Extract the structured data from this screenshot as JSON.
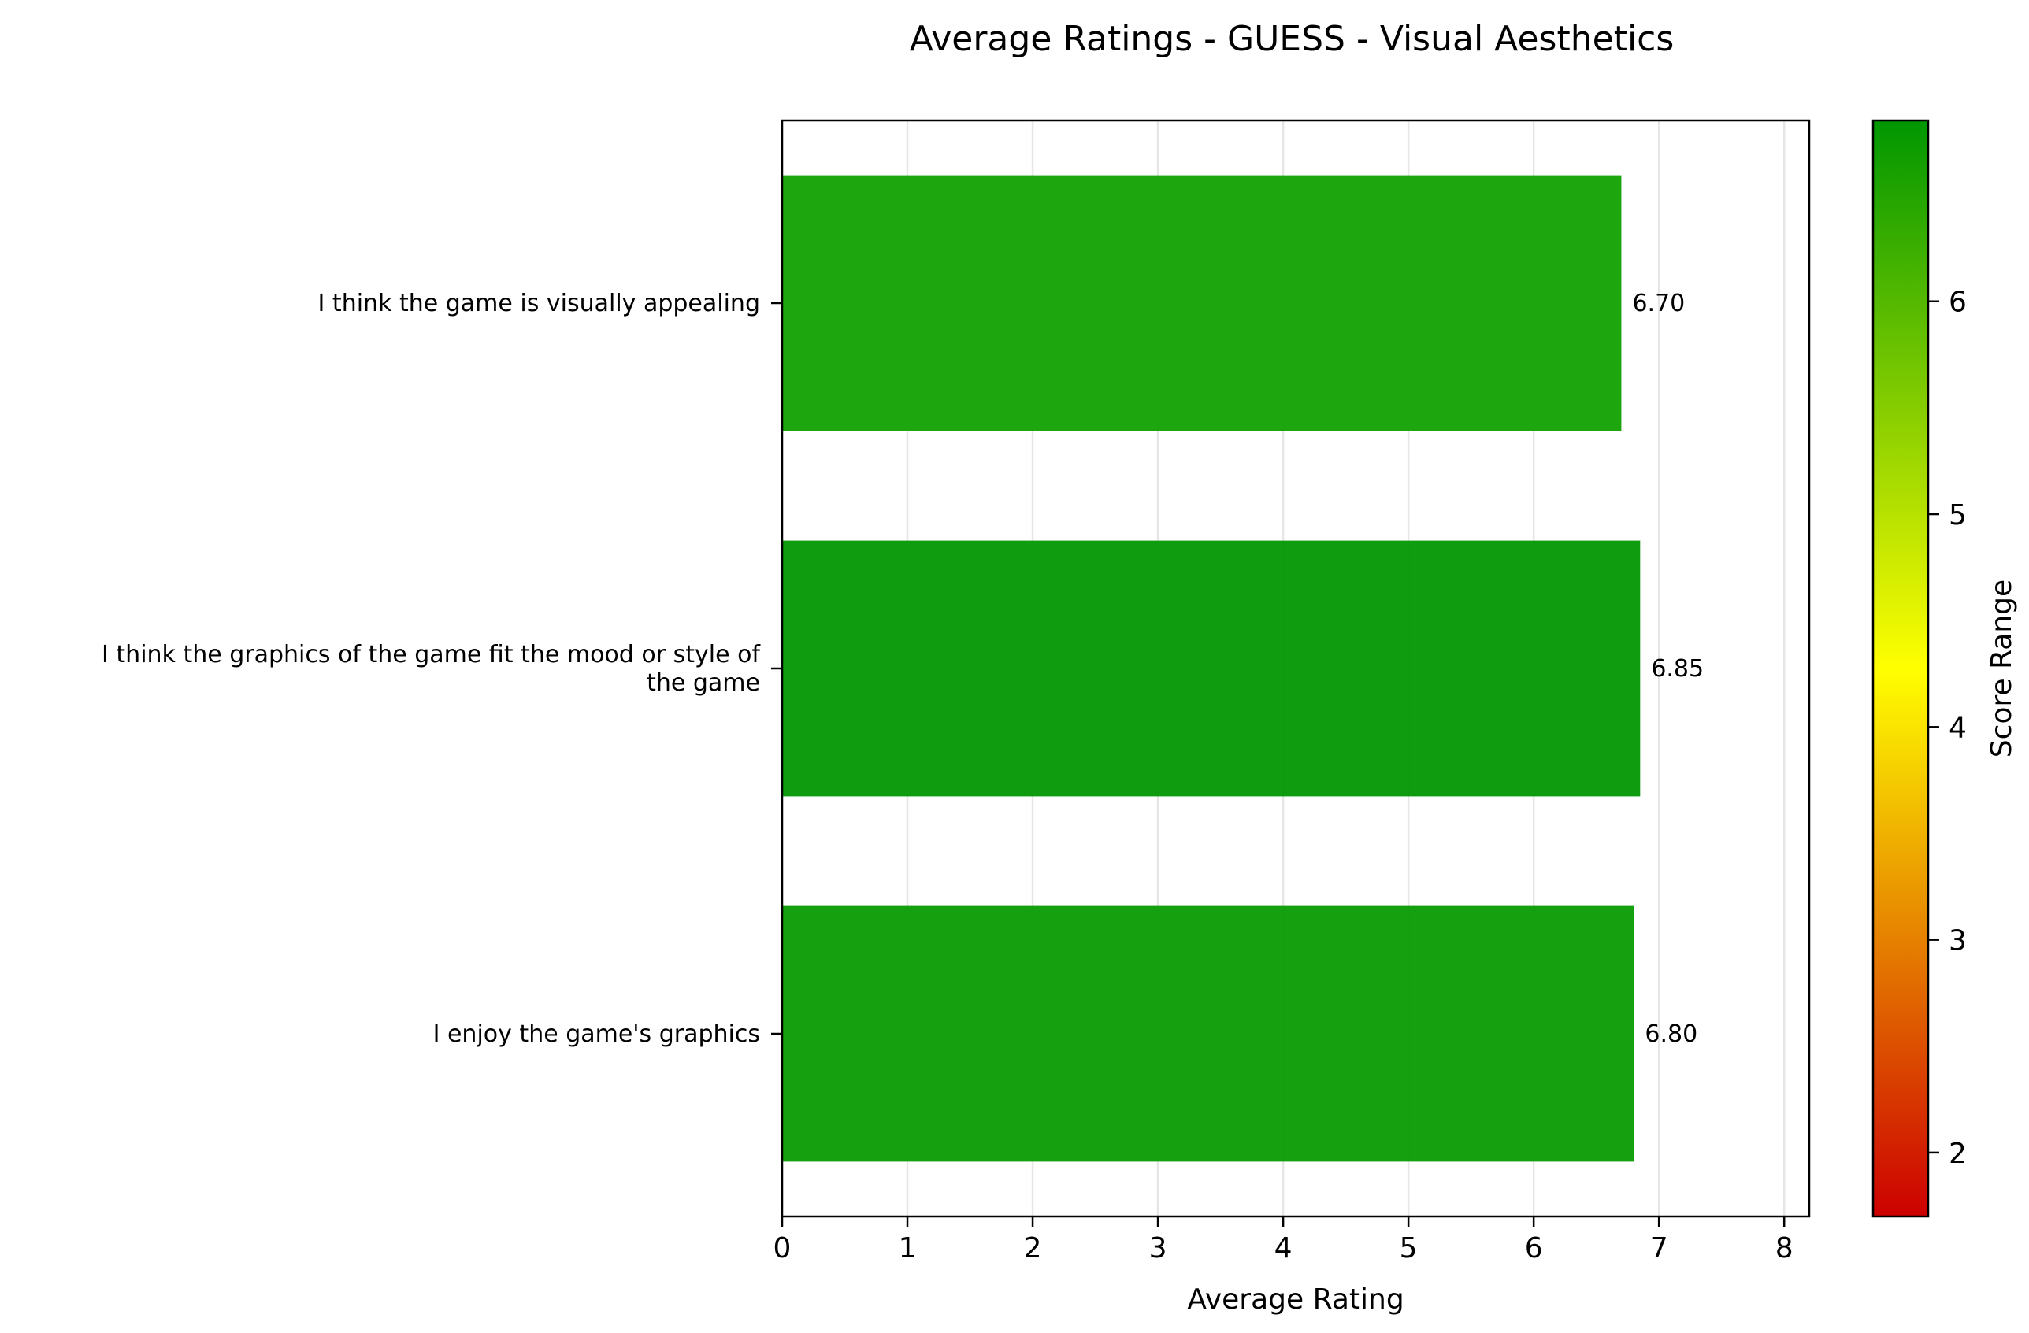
{
  "chart_data": {
    "type": "bar",
    "orientation": "horizontal",
    "title": "Average Ratings - GUESS - Visual Aesthetics",
    "xlabel": "Average Rating",
    "ylabel": "",
    "xlim": [
      0,
      8.2
    ],
    "xticks": [
      0,
      1,
      2,
      3,
      4,
      5,
      6,
      7,
      8
    ],
    "grid": "x",
    "categories": [
      [
        "I think the game is visually appealing"
      ],
      [
        "I think the graphics of the game fit the mood or style of",
        "the game"
      ],
      [
        "I enjoy the game's graphics"
      ]
    ],
    "values": [
      6.7,
      6.85,
      6.8
    ],
    "value_labels": [
      "6.70",
      "6.85",
      "6.80"
    ],
    "bar_colors": [
      "#10a000",
      "#009600",
      "#069a00"
    ],
    "colorbar": {
      "label": "Score Range",
      "range": [
        1.7,
        6.85
      ],
      "ticks": [
        2,
        3,
        4,
        5,
        6
      ],
      "colors": [
        "#cc0000",
        "#ffff00",
        "#009600"
      ]
    }
  }
}
